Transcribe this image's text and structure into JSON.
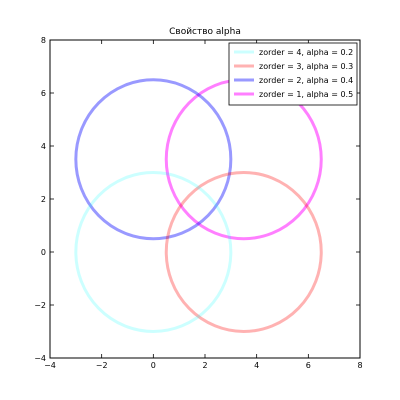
{
  "chart_data": {
    "type": "line",
    "title": "Свойство alpha",
    "xlabel": "",
    "ylabel": "",
    "xlim": [
      -4,
      8
    ],
    "ylim": [
      -4,
      8
    ],
    "xticks": [
      -4,
      -2,
      0,
      2,
      4,
      6,
      8
    ],
    "yticks": [
      -4,
      -2,
      0,
      2,
      4,
      6,
      8
    ],
    "xtick_labels": [
      "−4",
      "−2",
      "0",
      "2",
      "4",
      "6",
      "8"
    ],
    "ytick_labels": [
      "−4",
      "−2",
      "0",
      "2",
      "4",
      "6",
      "8"
    ],
    "grid": false,
    "legend_position": "top-right",
    "series": [
      {
        "name": "zorder = 4, alpha = 0.2",
        "shape": "circle",
        "center": [
          0,
          0
        ],
        "radius": 3,
        "color": "#00ffff",
        "alpha": 0.2
      },
      {
        "name": "zorder = 3, alpha = 0.3",
        "shape": "circle",
        "center": [
          3.5,
          0
        ],
        "radius": 3,
        "color": "#ff0000",
        "alpha": 0.3
      },
      {
        "name": "zorder = 2, alpha = 0.4",
        "shape": "circle",
        "center": [
          0,
          3.5
        ],
        "radius": 3,
        "color": "#0000ff",
        "alpha": 0.4
      },
      {
        "name": "zorder = 1, alpha = 0.5",
        "shape": "circle",
        "center": [
          3.5,
          3.5
        ],
        "radius": 3,
        "color": "#ff00ff",
        "alpha": 0.5
      }
    ]
  }
}
